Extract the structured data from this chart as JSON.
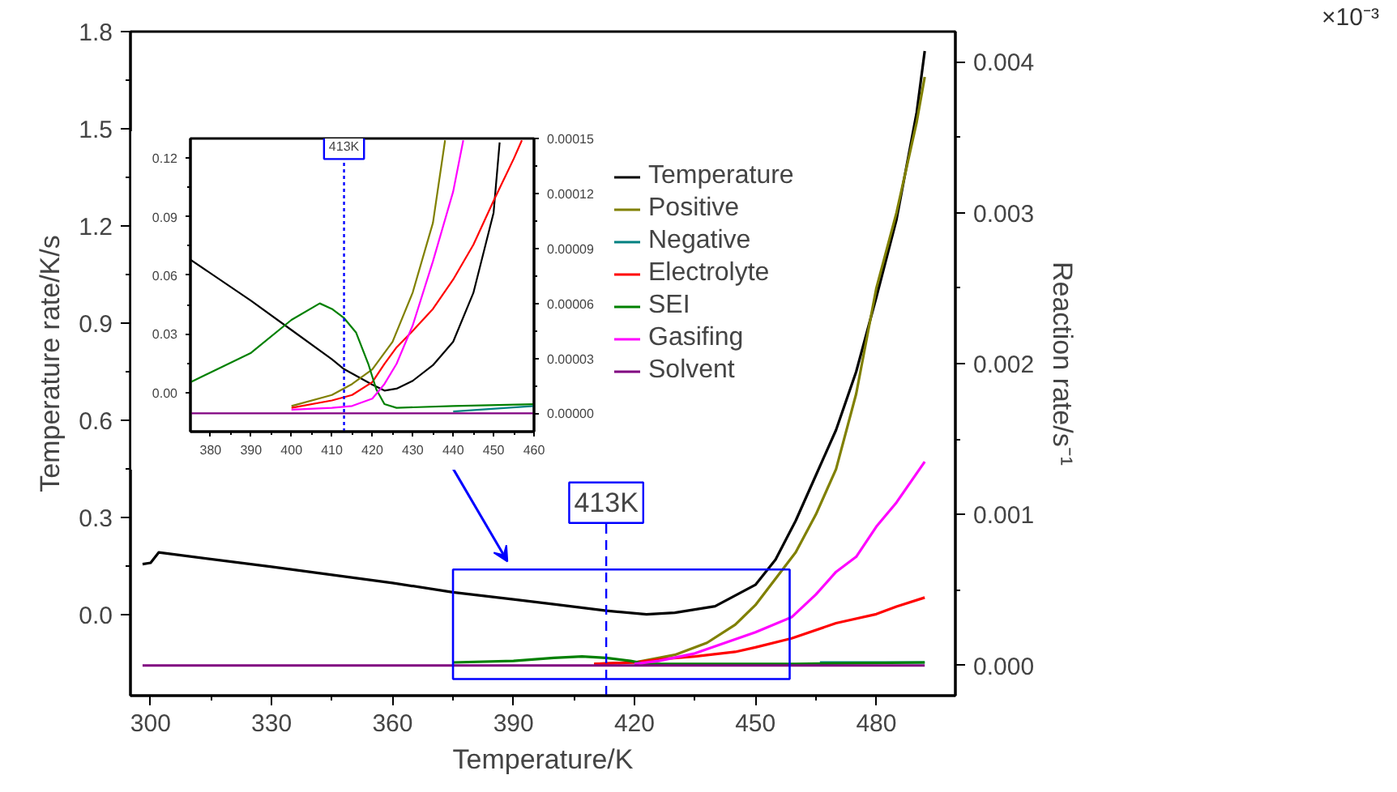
{
  "chart_data": [
    {
      "type": "line",
      "xlabel": "Temperature/K",
      "ylabel": "Temperature rate/K/s",
      "y2label": "Reaction rate/s⁻¹",
      "xlim": [
        295,
        499.6
      ],
      "ylim": [
        -0.25,
        1.8
      ],
      "y2lim": [
        -0.0002,
        0.0042
      ],
      "xticks": [
        300,
        330,
        360,
        390,
        420,
        450,
        480
      ],
      "yticks": [
        {
          "value": 0,
          "label": "0.0"
        },
        0.3,
        0.6,
        0.9,
        1.2,
        1.5,
        1.8
      ],
      "y2ticks": [
        {
          "value": 0,
          "label": "0.000"
        },
        {
          "value": 0.001,
          "label": "0.001"
        },
        {
          "value": 0.002,
          "label": "0.002"
        },
        {
          "value": 0.003,
          "label": "0.003"
        },
        {
          "value": 0.004,
          "label": "0.004"
        }
      ],
      "legend": "top right",
      "series": [
        {
          "name": "Temperature",
          "color": "#000000",
          "x": [
            298,
            300,
            302,
            330,
            360,
            375,
            390,
            400,
            413,
            423,
            430,
            440,
            450,
            455,
            460,
            465,
            470,
            475,
            480,
            485,
            490,
            492
          ],
          "values": [
            0.156,
            0.16,
            0.192,
            0.148,
            0.098,
            0.069,
            0.047,
            0.032,
            0.012,
            0.001,
            0.006,
            0.026,
            0.092,
            0.17,
            0.29,
            0.43,
            0.57,
            0.75,
            0.98,
            1.22,
            1.55,
            1.74
          ]
        },
        {
          "name": "Positive",
          "color": "#808000",
          "axis": "y2",
          "x": [
            410,
            420,
            430,
            438,
            445,
            450,
            460,
            465,
            470,
            475,
            480,
            485,
            490,
            492
          ],
          "values": [
            1e-05,
            2e-05,
            7e-05,
            0.00015,
            0.00027,
            0.0004,
            0.00075,
            0.001,
            0.0013,
            0.0018,
            0.0025,
            0.003,
            0.0036,
            0.0039
          ]
        },
        {
          "name": "Negative",
          "color": "#008080",
          "axis": "y2",
          "x": [
            466,
            470,
            492
          ],
          "values": [
            2e-05,
            2e-05,
            2e-05
          ]
        },
        {
          "name": "Electrolyte",
          "color": "#ff0000",
          "axis": "y2",
          "x": [
            410,
            420,
            426,
            435,
            445,
            450,
            459,
            470,
            480,
            485,
            492
          ],
          "values": [
            1e-05,
            2e-05,
            4e-05,
            6e-05,
            9e-05,
            0.00012,
            0.00018,
            0.00028,
            0.00034,
            0.00039,
            0.00045
          ]
        },
        {
          "name": "SEI",
          "color": "#008000",
          "axis": "y2",
          "x": [
            375,
            390,
            400,
            407,
            413,
            419,
            423,
            440,
            460,
            492
          ],
          "values": [
            2e-05,
            3e-05,
            5e-05,
            6e-05,
            5e-05,
            3e-05,
            1e-05,
            1e-05,
            1e-05,
            2e-05
          ]
        },
        {
          "name": "Gasifing",
          "color": "#ff00ff",
          "axis": "y2",
          "x": [
            420,
            426,
            435,
            442.5,
            450,
            459,
            465,
            470,
            475,
            480,
            485,
            492
          ],
          "values": [
            1e-05,
            3e-05,
            8e-05,
            0.00015,
            0.00022,
            0.00032,
            0.00047,
            0.00062,
            0.00072,
            0.00092,
            0.00108,
            0.00135
          ]
        },
        {
          "name": "Solvent",
          "color": "#800080",
          "axis": "y2",
          "x": [
            298,
            492
          ],
          "values": [
            0,
            0
          ]
        }
      ],
      "ref_lines": [
        {
          "axis": "x",
          "value": 413,
          "label": "413K",
          "color": "#0000ff",
          "line_style": "dashed"
        }
      ],
      "annotations": [
        "×10⁻³"
      ]
    },
    {
      "type": "line",
      "xlim": [
        375,
        460
      ],
      "ylim": [
        -0.02,
        0.13
      ],
      "y2lim": [
        -1e-05,
        0.00015
      ],
      "xticks": [
        380,
        390,
        400,
        410,
        420,
        430,
        440,
        450,
        460
      ],
      "yticks": [
        {
          "value": 0,
          "label": "0.00"
        },
        {
          "value": 0.03,
          "label": "0.03"
        },
        {
          "value": 0.06,
          "label": "0.06"
        },
        {
          "value": 0.09,
          "label": "0.09"
        },
        {
          "value": 0.12,
          "label": "0.12"
        }
      ],
      "y2ticks": [
        {
          "value": 0,
          "label": "0.00000"
        },
        {
          "value": 3e-05,
          "label": "0.00003"
        },
        {
          "value": 6e-05,
          "label": "0.00006"
        },
        {
          "value": 9e-05,
          "label": "0.00009"
        },
        {
          "value": 0.00012,
          "label": "0.00012"
        },
        {
          "value": 0.00015,
          "label": "0.00015"
        }
      ],
      "series": [
        {
          "color": "#000000",
          "x": [
            375,
            390,
            400,
            410,
            413,
            420,
            423,
            426,
            430,
            435,
            440,
            445,
            450,
            451.5
          ],
          "values": [
            0.068,
            0.047,
            0.032,
            0.017,
            0.012,
            0.004,
            0.001,
            0.002,
            0.006,
            0.014,
            0.026,
            0.051,
            0.092,
            0.128
          ]
        },
        {
          "color": "#808000",
          "axis": "y2",
          "x": [
            400,
            410,
            415,
            420,
            425,
            430,
            435,
            438
          ],
          "values": [
            4e-06,
            1e-05,
            1.6e-05,
            2.4e-05,
            3.9e-05,
            6.6e-05,
            0.000104,
            0.000149
          ]
        },
        {
          "color": "#008080",
          "axis": "y2",
          "x": [
            440,
            460
          ],
          "values": [
            1e-06,
            4e-06
          ]
        },
        {
          "color": "#ff0000",
          "axis": "y2",
          "x": [
            400,
            410,
            415,
            420,
            423,
            426,
            430,
            435,
            440,
            445,
            450,
            455,
            457
          ],
          "values": [
            3e-06,
            7e-06,
            1e-05,
            1.7e-05,
            2.7e-05,
            3.6e-05,
            4.5e-05,
            5.7e-05,
            7.3e-05,
            9.2e-05,
            0.000116,
            0.000139,
            0.000149
          ]
        },
        {
          "color": "#008000",
          "axis": "y2",
          "x": [
            375,
            390,
            400,
            407,
            410,
            413,
            416,
            419,
            421,
            423,
            426,
            440,
            460
          ],
          "values": [
            1.7e-05,
            3.3e-05,
            5.1e-05,
            6e-05,
            5.7e-05,
            5.2e-05,
            4.4e-05,
            2.7e-05,
            1.3e-05,
            5e-06,
            3e-06,
            4e-06,
            5e-06
          ]
        },
        {
          "color": "#ff00ff",
          "axis": "y2",
          "x": [
            400,
            410,
            415,
            420,
            423,
            426,
            430,
            435,
            440,
            442.5
          ],
          "values": [
            2e-06,
            3e-06,
            4e-06,
            8e-06,
            1.6e-05,
            2.7e-05,
            4.8e-05,
            8.3e-05,
            0.000121,
            0.000149
          ]
        },
        {
          "color": "#800080",
          "axis": "y2",
          "x": [
            375,
            460
          ],
          "values": [
            0,
            0
          ]
        }
      ],
      "ref_lines": [
        {
          "axis": "x",
          "value": 413,
          "label": "413K",
          "color": "#0000ff",
          "line_style": "dotted"
        }
      ]
    }
  ]
}
